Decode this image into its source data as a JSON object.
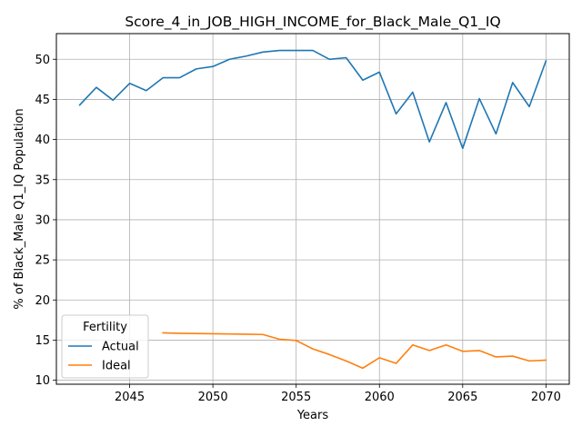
{
  "chart_data": {
    "type": "line",
    "title": "Score_4_in_JOB_HIGH_INCOME_for_Black_Male_Q1_IQ",
    "xlabel": "Years",
    "ylabel": "% of Black_Male Q1_IQ Population",
    "xlim": [
      2040.6,
      2071.4
    ],
    "ylim": [
      9.5,
      53.2
    ],
    "xticks": [
      2045,
      2050,
      2055,
      2060,
      2065,
      2070
    ],
    "yticks": [
      10,
      15,
      20,
      25,
      30,
      35,
      40,
      45,
      50
    ],
    "grid": true,
    "legend": {
      "title": "Fertility",
      "placement": "lower-left"
    },
    "series": [
      {
        "name": "Actual",
        "color": "#1f77b4",
        "x": [
          2042,
          2043,
          2044,
          2045,
          2046,
          2047,
          2048,
          2049,
          2050,
          2051,
          2052,
          2053,
          2054,
          2055,
          2056,
          2057,
          2058,
          2059,
          2060,
          2061,
          2062,
          2063,
          2064,
          2065,
          2066,
          2067,
          2068,
          2069,
          2070
        ],
        "y": [
          44.3,
          46.5,
          44.9,
          47.0,
          46.1,
          47.7,
          47.7,
          48.8,
          49.1,
          50.0,
          50.4,
          50.9,
          51.1,
          51.1,
          51.1,
          50.0,
          50.2,
          47.4,
          48.4,
          43.2,
          45.9,
          39.7,
          44.6,
          38.9,
          45.1,
          40.7,
          47.1,
          44.1,
          49.8
        ]
      },
      {
        "name": "Ideal",
        "color": "#ff7f0e",
        "x": [
          2047,
          2048,
          2049,
          2050,
          2051,
          2052,
          2053,
          2054,
          2055,
          2056,
          2057,
          2058,
          2059,
          2060,
          2061,
          2062,
          2063,
          2064,
          2065,
          2066,
          2067,
          2068,
          2069,
          2070
        ],
        "y": [
          15.9,
          15.85,
          15.82,
          15.79,
          15.76,
          15.73,
          15.7,
          15.1,
          14.95,
          13.9,
          13.2,
          12.4,
          11.5,
          12.8,
          12.1,
          14.4,
          13.7,
          14.4,
          13.6,
          13.7,
          12.9,
          13.0,
          12.4,
          12.5
        ]
      }
    ]
  }
}
